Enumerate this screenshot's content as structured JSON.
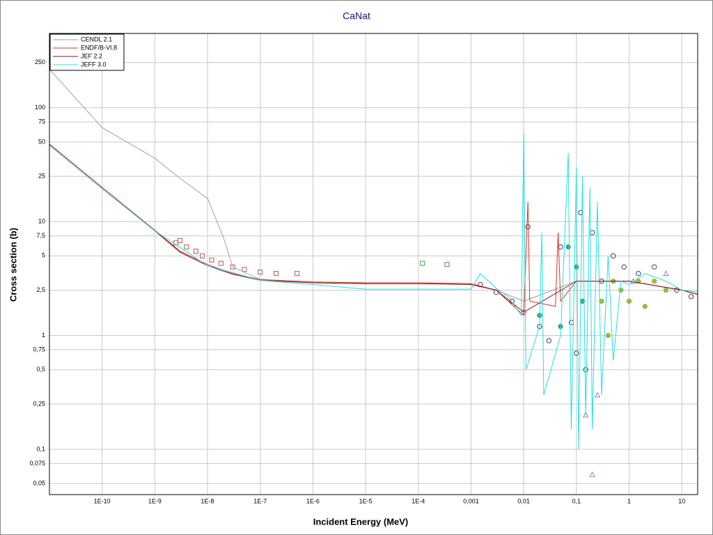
{
  "chart_data": {
    "type": "line",
    "title": "CaNat",
    "xlabel": "Incident Energy (MeV)",
    "ylabel": "Cross section (b)",
    "xscale": "log",
    "yscale": "log",
    "grid": true,
    "legend": "upper left",
    "xlim": [
      1e-11,
      20
    ],
    "ylim": [
      0.04,
      450
    ],
    "xticks": [
      {
        "value": 1e-10,
        "label": "1E-10"
      },
      {
        "value": 1e-09,
        "label": "1E-9"
      },
      {
        "value": 1e-08,
        "label": "1E-8"
      },
      {
        "value": 1e-07,
        "label": "1E-7"
      },
      {
        "value": 1e-06,
        "label": "1E-6"
      },
      {
        "value": 1e-05,
        "label": "1E-5"
      },
      {
        "value": 0.0001,
        "label": "1E-4"
      },
      {
        "value": 0.001,
        "label": "0,001"
      },
      {
        "value": 0.01,
        "label": "0,01"
      },
      {
        "value": 0.1,
        "label": "0,1"
      },
      1,
      10
    ],
    "yticks": [
      {
        "value": 0.05,
        "label": "0,05"
      },
      {
        "value": 0.075,
        "label": "0,075"
      },
      {
        "value": 0.1,
        "label": "0,1"
      },
      {
        "value": 0.25,
        "label": "0,25"
      },
      {
        "value": 0.5,
        "label": "0,5"
      },
      {
        "value": 0.75,
        "label": "0,75"
      },
      1,
      {
        "value": 2.5,
        "label": "2,5"
      },
      5,
      {
        "value": 7.5,
        "label": "7,5"
      },
      10,
      25,
      50,
      75,
      100,
      250
    ],
    "series": [
      {
        "name": "CENDL 2.1",
        "color": "#a0a0a0",
        "x": [
          1e-11,
          1e-10,
          1e-09,
          3e-09,
          1e-08,
          2e-08,
          3e-08,
          1e-07,
          1e-06,
          1e-05,
          0.0001,
          0.001,
          0.003,
          0.01,
          0.1,
          1,
          10,
          20
        ],
        "values": [
          218,
          67,
          36,
          24,
          16,
          7.3,
          4,
          3.1,
          2.95,
          2.9,
          2.9,
          2.85,
          2.5,
          2,
          3,
          3,
          2.5,
          2.3
        ]
      },
      {
        "name": "ENDF/B-VI.8",
        "color": "#e03020",
        "x": [
          1e-11,
          1e-10,
          1e-09,
          3e-09,
          1e-08,
          3e-08,
          1e-07,
          1e-06,
          1e-05,
          0.0001,
          0.001,
          0.003,
          0.01,
          0.012,
          0.013,
          0.04,
          0.045,
          0.05,
          0.1,
          1,
          10,
          20
        ],
        "values": [
          48,
          20,
          8.4,
          5.5,
          4.2,
          3.5,
          3.1,
          2.95,
          2.9,
          2.9,
          2.85,
          2.5,
          1.5,
          15,
          2,
          1.8,
          8,
          2,
          3,
          3,
          2.5,
          2.3
        ]
      },
      {
        "name": "JEF 2.2",
        "color": "#8b1010",
        "x": [
          1e-11,
          1e-10,
          1e-09,
          3e-09,
          1e-08,
          3e-08,
          1e-07,
          1e-06,
          1e-05,
          0.0001,
          0.001,
          0.003,
          0.01,
          0.1,
          1,
          10,
          20
        ],
        "values": [
          47,
          19.5,
          8.3,
          5.4,
          4.1,
          3.45,
          3.05,
          2.9,
          2.85,
          2.85,
          2.8,
          2.5,
          1.6,
          3,
          3,
          2.5,
          2.3
        ]
      },
      {
        "name": "JEFF 3.0",
        "color": "#20e0e0",
        "x": [
          1e-11,
          1e-10,
          1e-09,
          1e-08,
          1e-07,
          1e-06,
          1e-05,
          0.0001,
          0.001,
          0.0015,
          0.003,
          0.005,
          0.009,
          0.01,
          0.011,
          0.02,
          0.022,
          0.024,
          0.05,
          0.07,
          0.08,
          0.1,
          0.11,
          0.13,
          0.15,
          0.18,
          0.2,
          0.25,
          0.3,
          0.4,
          0.5,
          0.7,
          1,
          2,
          5,
          10,
          20
        ],
        "values": [
          47,
          19.5,
          8.3,
          4.1,
          3.05,
          2.8,
          2.55,
          2.55,
          2.55,
          3.5,
          2.6,
          2.2,
          1.5,
          60,
          0.5,
          1.2,
          8,
          0.3,
          1,
          40,
          0.15,
          30,
          0.1,
          25,
          0.2,
          20,
          0.15,
          15,
          0.3,
          5,
          0.6,
          3,
          2.8,
          3.5,
          3,
          2.5,
          2.4
        ]
      }
    ],
    "points": [
      {
        "color": "#b05a50",
        "marker": "square",
        "x": [
          2.5e-09,
          3e-09,
          4e-09,
          6e-09,
          8e-09,
          1.2e-08,
          1.8e-08,
          3e-08,
          5e-08,
          1e-07,
          2e-07,
          5e-07
        ],
        "values": [
          6.5,
          6.8,
          6,
          5.5,
          5,
          4.6,
          4.3,
          4,
          3.8,
          3.6,
          3.5,
          3.5
        ]
      },
      {
        "color": "#30a040",
        "marker": "square",
        "x": [
          0.00012,
          0.00035
        ],
        "values": [
          4.3,
          4.2
        ]
      },
      {
        "color": "#3a3a7a",
        "marker": "circle",
        "x": [
          0.0015,
          0.003,
          0.006,
          0.01,
          0.012,
          0.02,
          0.03,
          0.05,
          0.08,
          0.1,
          0.12,
          0.15,
          0.2,
          0.3,
          0.5,
          0.8,
          1.5,
          3,
          8,
          15
        ],
        "values": [
          2.8,
          2.4,
          2,
          1.6,
          9,
          1.2,
          0.9,
          6,
          1.3,
          0.7,
          12,
          0.5,
          8,
          3,
          5,
          4,
          3.5,
          4,
          2.5,
          2.2
        ]
      },
      {
        "color": "#40a090",
        "marker": "dot",
        "x": [
          0.02,
          0.05,
          0.07,
          0.1,
          0.13
        ],
        "values": [
          1.5,
          1.2,
          6,
          4,
          2
        ]
      },
      {
        "color": "#90c040",
        "marker": "dot",
        "x": [
          0.3,
          0.4,
          0.5,
          0.7,
          1,
          1.5,
          2,
          3,
          5
        ],
        "values": [
          2,
          1,
          3,
          2.5,
          2,
          3,
          1.8,
          3,
          2.5
        ]
      },
      {
        "color": "#9080c0",
        "marker": "triangle",
        "x": [
          0.15,
          0.2,
          0.25,
          1.2,
          5
        ],
        "values": [
          0.2,
          0.06,
          0.3,
          3,
          3.5
        ]
      }
    ]
  }
}
